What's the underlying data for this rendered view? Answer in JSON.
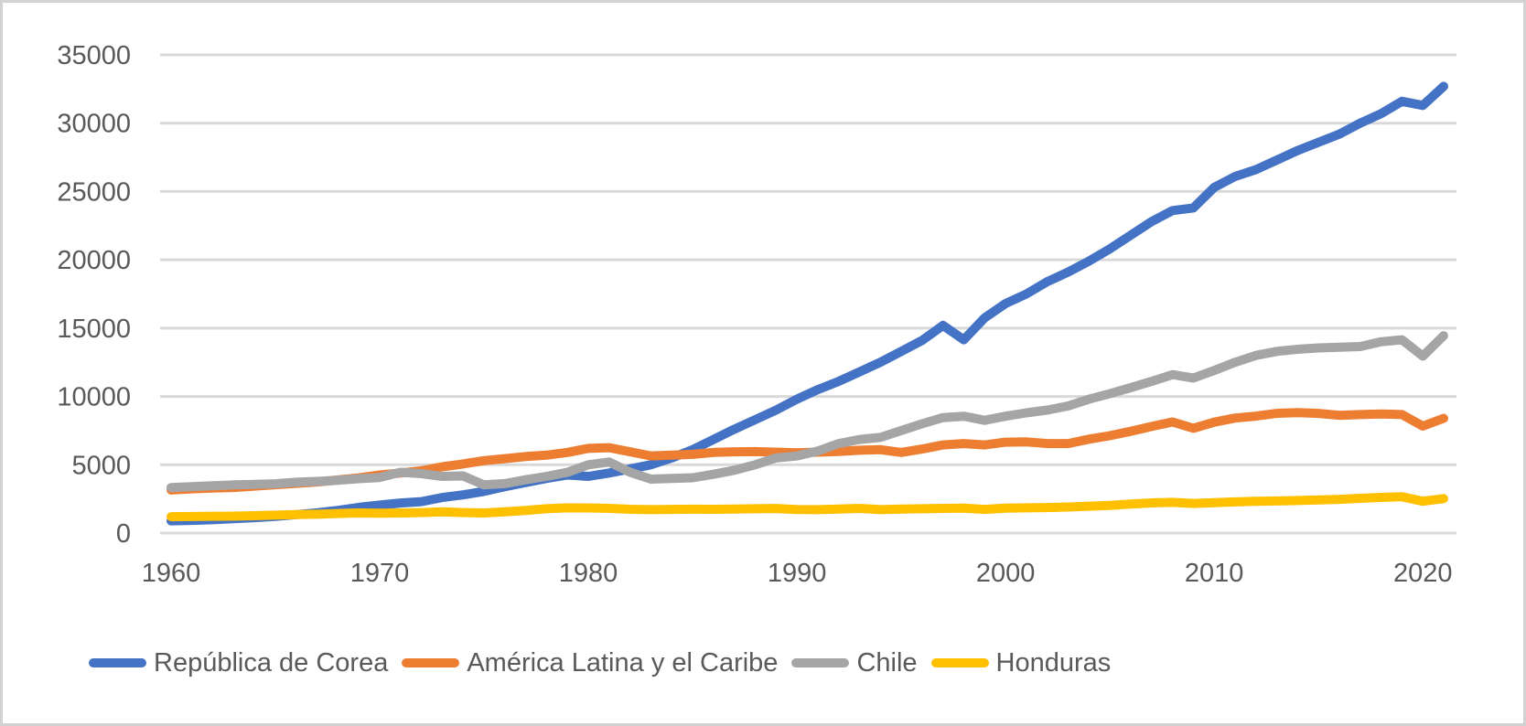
{
  "page": {
    "background_color": "#ffffff",
    "frame_border_color": "#d2d2d2"
  },
  "chart_data": {
    "type": "line",
    "title": "",
    "xlabel": "",
    "ylabel": "",
    "xlim": [
      1960,
      2021
    ],
    "ylim": [
      0,
      35000
    ],
    "grid": "horizontal",
    "gridline_color": "#d9d9d9",
    "axis_text_color": "#595959",
    "legend_position": "bottom",
    "y_ticks": [
      "0",
      "5000",
      "10000",
      "15000",
      "20000",
      "25000",
      "30000",
      "35000"
    ],
    "x_ticks": [
      "1960",
      "1970",
      "1980",
      "1990",
      "2000",
      "2010",
      "2020"
    ],
    "x": [
      1960,
      1961,
      1962,
      1963,
      1964,
      1965,
      1966,
      1967,
      1968,
      1969,
      1970,
      1971,
      1972,
      1973,
      1974,
      1975,
      1976,
      1977,
      1978,
      1979,
      1980,
      1981,
      1982,
      1983,
      1984,
      1985,
      1986,
      1987,
      1988,
      1989,
      1990,
      1991,
      1992,
      1993,
      1994,
      1995,
      1996,
      1997,
      1998,
      1999,
      2000,
      2001,
      2002,
      2003,
      2004,
      2005,
      2006,
      2007,
      2008,
      2009,
      2010,
      2011,
      2012,
      2013,
      2014,
      2015,
      2016,
      2017,
      2018,
      2019,
      2020,
      2021
    ],
    "series": [
      {
        "name": "República de Corea",
        "color": "#4472c4",
        "values": [
          900,
          930,
          980,
          1060,
          1130,
          1220,
          1350,
          1480,
          1660,
          1880,
          2050,
          2200,
          2300,
          2600,
          2800,
          3050,
          3400,
          3700,
          4000,
          4250,
          4150,
          4400,
          4700,
          5000,
          5500,
          6100,
          6850,
          7600,
          8300,
          9000,
          9800,
          10500,
          11100,
          11800,
          12500,
          13300,
          14100,
          15200,
          14150,
          15750,
          16800,
          17500,
          18400,
          19100,
          19900,
          20800,
          21800,
          22800,
          23600,
          23800,
          25300,
          26100,
          26600,
          27300,
          28000,
          28600,
          29200,
          30000,
          30700,
          31600,
          31300,
          32700
        ]
      },
      {
        "name": "América Latina y el Caribe",
        "color": "#ed7d31",
        "values": [
          3150,
          3240,
          3290,
          3340,
          3440,
          3540,
          3640,
          3740,
          3890,
          4040,
          4250,
          4400,
          4560,
          4850,
          5060,
          5300,
          5450,
          5600,
          5700,
          5900,
          6200,
          6250,
          5950,
          5650,
          5700,
          5760,
          5900,
          5950,
          5960,
          5920,
          5870,
          5920,
          5970,
          6060,
          6100,
          5900,
          6150,
          6450,
          6550,
          6450,
          6650,
          6670,
          6550,
          6550,
          6870,
          7130,
          7450,
          7800,
          8130,
          7670,
          8120,
          8420,
          8560,
          8760,
          8820,
          8760,
          8620,
          8670,
          8720,
          8670,
          7830,
          8400
        ]
      },
      {
        "name": "Chile",
        "color": "#a5a5a5",
        "values": [
          3330,
          3390,
          3460,
          3530,
          3560,
          3610,
          3720,
          3780,
          3870,
          3980,
          4070,
          4450,
          4350,
          4150,
          4180,
          3530,
          3620,
          3900,
          4150,
          4450,
          5000,
          5200,
          4450,
          3950,
          4000,
          4050,
          4300,
          4600,
          5000,
          5500,
          5650,
          6000,
          6550,
          6850,
          7000,
          7500,
          8000,
          8450,
          8550,
          8250,
          8550,
          8800,
          9000,
          9300,
          9800,
          10200,
          10650,
          11100,
          11600,
          11350,
          11900,
          12500,
          13000,
          13300,
          13450,
          13550,
          13600,
          13650,
          14000,
          14150,
          12950,
          14450
        ]
      },
      {
        "name": "Honduras",
        "color": "#ffc000",
        "values": [
          1200,
          1210,
          1230,
          1240,
          1270,
          1310,
          1350,
          1380,
          1430,
          1470,
          1450,
          1470,
          1500,
          1550,
          1500,
          1470,
          1550,
          1650,
          1780,
          1850,
          1840,
          1810,
          1740,
          1710,
          1730,
          1750,
          1740,
          1760,
          1780,
          1800,
          1720,
          1710,
          1760,
          1810,
          1710,
          1760,
          1780,
          1810,
          1820,
          1730,
          1820,
          1850,
          1870,
          1910,
          1970,
          2030,
          2120,
          2210,
          2250,
          2170,
          2220,
          2280,
          2320,
          2350,
          2380,
          2420,
          2470,
          2540,
          2610,
          2660,
          2330,
          2520
        ]
      }
    ]
  }
}
